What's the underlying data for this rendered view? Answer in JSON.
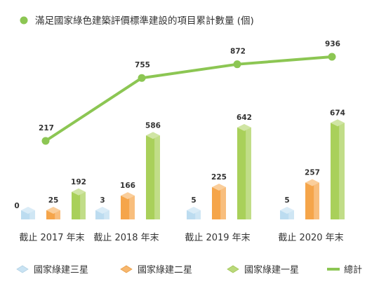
{
  "chart_data": {
    "type": "bar",
    "title": "滿足國家綠色建築評價標準建設的項目累計數量 (個)",
    "categories": [
      "截止 2017 年末",
      "截止 2018 年末",
      "截止 2019 年末",
      "截止 2020 年末"
    ],
    "series": [
      {
        "name": "國家綠建三星",
        "type": "bar",
        "values": [
          0,
          3,
          5,
          5
        ]
      },
      {
        "name": "國家綠建二星",
        "type": "bar",
        "values": [
          25,
          166,
          225,
          257
        ]
      },
      {
        "name": "國家綠建一星",
        "type": "bar",
        "values": [
          192,
          586,
          642,
          674
        ]
      },
      {
        "name": "總計",
        "type": "line",
        "values": [
          217,
          755,
          872,
          936
        ]
      }
    ],
    "legend_position": "bottom",
    "grid": false
  },
  "colors": {
    "three_star": "#bcdcf0",
    "two_star": "#f5a54a",
    "one_star": "#a9d05a",
    "total_line": "#8cc653",
    "title_dot": "#8cc653",
    "text": "#333333"
  }
}
